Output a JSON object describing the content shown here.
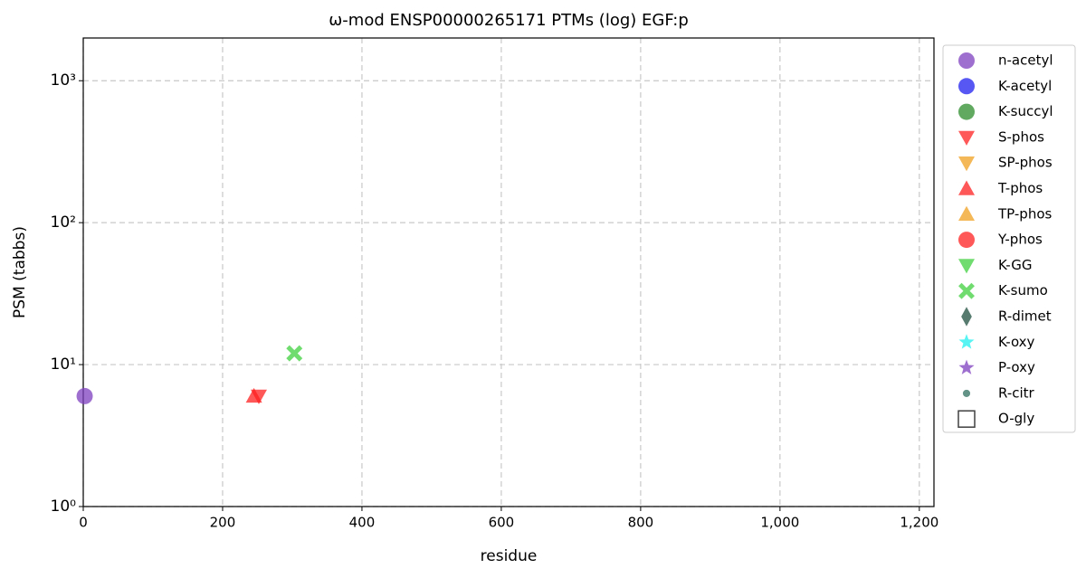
{
  "chart_data": {
    "type": "scatter",
    "title": "ω-mod ENSP00000265171 PTMs (log) EGF:p",
    "x_label": "residue",
    "y_label": "PSM (tabbs)",
    "xlim": [
      0,
      1221
    ],
    "ylim": [
      1,
      2000
    ],
    "log_y": true,
    "grid": true,
    "legend": "right",
    "xticks": [
      0,
      200,
      400,
      600,
      800,
      {
        "value": 1000,
        "label": "1,000"
      },
      {
        "value": 1200,
        "label": "1,200"
      }
    ],
    "yticks": [
      {
        "value": 1,
        "label": "10⁰"
      },
      {
        "value": 10,
        "label": "10¹"
      },
      {
        "value": 100,
        "label": "10²"
      },
      {
        "value": 1000,
        "label": "10³"
      }
    ],
    "series": [
      {
        "name": "n-acetyl",
        "color": "#7f3fbf",
        "marker": "circle",
        "x": [
          2
        ],
        "y": [
          6
        ]
      },
      {
        "name": "K-acetyl",
        "color": "#1f1fef",
        "marker": "circle",
        "x": [],
        "y": []
      },
      {
        "name": "K-succyl",
        "color": "#2c8c2c",
        "marker": "circle",
        "x": [],
        "y": []
      },
      {
        "name": "S-phos",
        "color": "#ff2020",
        "marker": "triangle-down",
        "x": [
          252
        ],
        "y": [
          6
        ]
      },
      {
        "name": "SP-phos",
        "color": "#f0a020",
        "marker": "triangle-down",
        "x": [],
        "y": []
      },
      {
        "name": "T-phos",
        "color": "#ff2020",
        "marker": "triangle-up",
        "x": [
          245
        ],
        "y": [
          6
        ]
      },
      {
        "name": "TP-phos",
        "color": "#f0a020",
        "marker": "triangle-up",
        "x": [],
        "y": []
      },
      {
        "name": "Y-phos",
        "color": "#ff2020",
        "marker": "circle",
        "x": [],
        "y": []
      },
      {
        "name": "K-GG",
        "color": "#40d040",
        "marker": "triangle-down",
        "x": [],
        "y": []
      },
      {
        "name": "K-sumo",
        "color": "#40d040",
        "marker": "x",
        "x": [
          303
        ],
        "y": [
          12
        ]
      },
      {
        "name": "R-dimet",
        "color": "#1f4f3f",
        "marker": "diamond",
        "x": [],
        "y": []
      },
      {
        "name": "K-oxy",
        "color": "#20f0f0",
        "marker": "star",
        "x": [],
        "y": []
      },
      {
        "name": "P-oxy",
        "color": "#7f3fbf",
        "marker": "star",
        "x": [],
        "y": []
      },
      {
        "name": "R-citr",
        "color": "#2f6f5f",
        "marker": "point",
        "x": [],
        "y": []
      },
      {
        "name": "O-gly",
        "color": "#404040",
        "marker": "square",
        "x": [],
        "y": []
      }
    ]
  }
}
